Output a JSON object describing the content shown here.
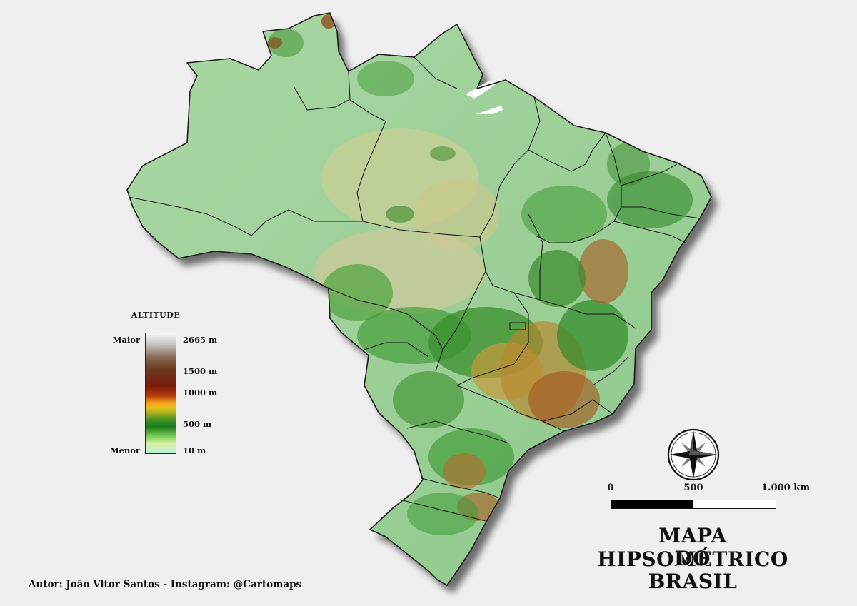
{
  "legend": {
    "title": "ALTITUDE",
    "top_label": "Maior",
    "bottom_label": "Menor",
    "values": [
      "2665 m",
      "1500 m",
      "1000 m",
      "500 m",
      "10 m"
    ]
  },
  "scale": {
    "labels": [
      "0",
      "500",
      "1.000 km"
    ]
  },
  "title": {
    "line1": "MAPA HIPSOMÉTRICO",
    "line2": "DO",
    "line3": "BRASIL"
  },
  "author": "Autor: João Vitor Santos - Instagram: @Cartomaps",
  "compass": {
    "icon": "compass-rose-icon"
  },
  "colors": {
    "background": "#efefef",
    "lowland": "#8fcf8e",
    "lowland_light": "#a9d7a3",
    "plateau": "#c9c98a",
    "forest": "#3f9a34",
    "dark_green": "#1f7a22",
    "highland": "#c79a3c",
    "mountain": "#8a3a12",
    "border": "#1a1a1a"
  }
}
